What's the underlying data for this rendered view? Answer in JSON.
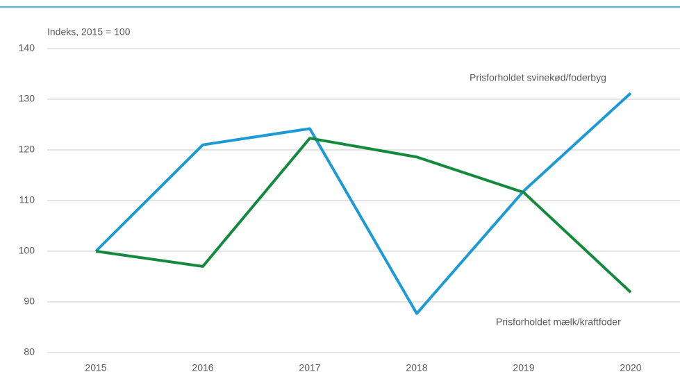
{
  "chart_data": {
    "type": "line",
    "y_label": "Indeks, 2015 = 100",
    "categories": [
      "2015",
      "2016",
      "2017",
      "2018",
      "2019",
      "2020"
    ],
    "series": [
      {
        "name": "Prisforholdet svinekød/foderbyg",
        "color": "#1b9ad6",
        "values": [
          100,
          121,
          124.2,
          87.7,
          111.9,
          131.2
        ]
      },
      {
        "name": "Prisforholdet mælk/kraftfoder",
        "color": "#138a3c",
        "values": [
          100,
          97,
          122.3,
          118.6,
          111.6,
          91.9
        ]
      }
    ],
    "ylim": [
      80,
      140
    ],
    "yticks": [
      80,
      90,
      100,
      110,
      120,
      130,
      140
    ],
    "grid": true
  }
}
